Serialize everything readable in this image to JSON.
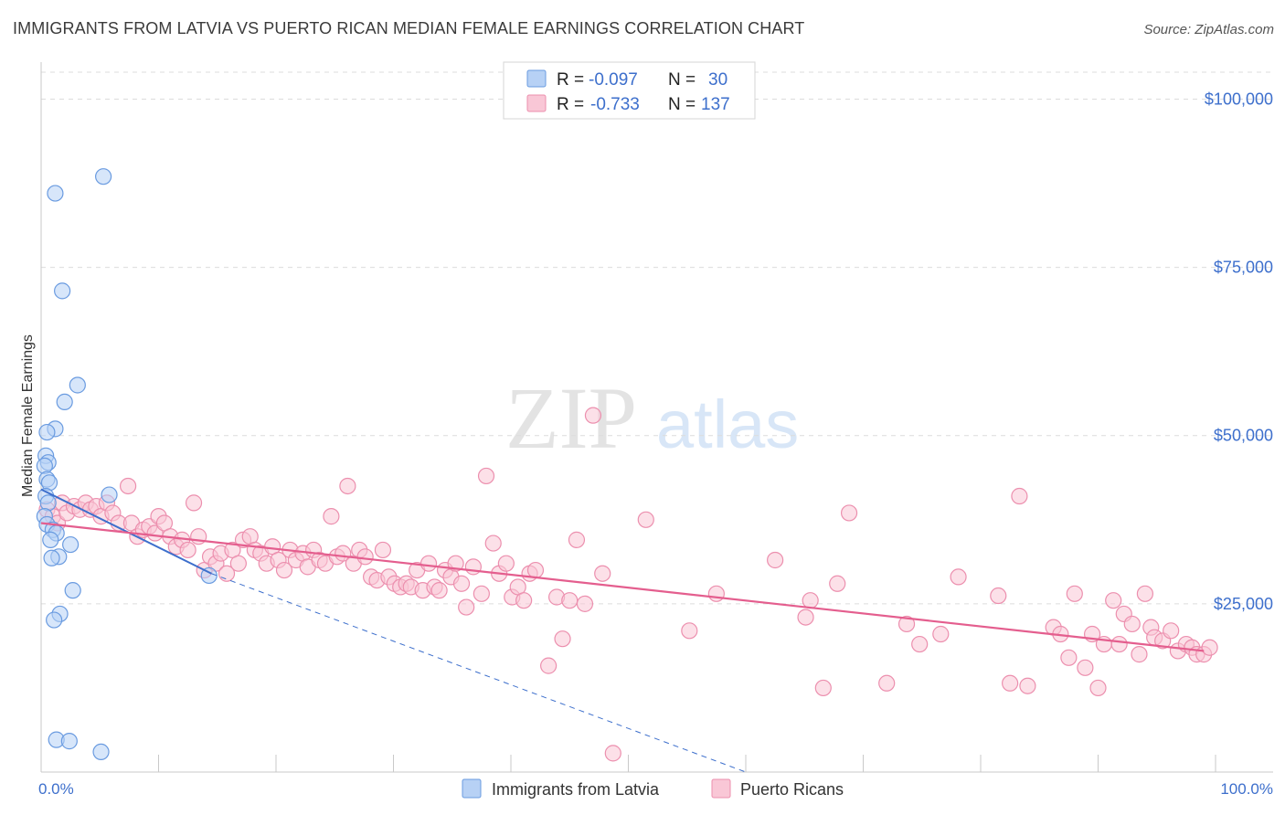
{
  "header": {
    "title": "IMMIGRANTS FROM LATVIA VS PUERTO RICAN MEDIAN FEMALE EARNINGS CORRELATION CHART",
    "source": "Source: ZipAtlas.com"
  },
  "watermark": {
    "zip": "ZIP",
    "atlas": "atlas"
  },
  "colors": {
    "latvia_fill": "#b7d1f5",
    "latvia_stroke": "#6a9be0",
    "latvia_line": "#3d6fcc",
    "pr_fill": "#f9c7d6",
    "pr_stroke": "#ec8fae",
    "pr_line": "#e45e8e",
    "axis_label": "#3d6fcc",
    "grid": "#dcdcdc"
  },
  "chart_data": {
    "type": "scatter",
    "title": "IMMIGRANTS FROM LATVIA VS PUERTO RICAN MEDIAN FEMALE EARNINGS CORRELATION CHART",
    "xlabel": "",
    "ylabel": "Median Female Earnings",
    "xlim": [
      0,
      100
    ],
    "ylim": [
      0,
      104000
    ],
    "x_tick_labels": {
      "left": "0.0%",
      "right": "100.0%"
    },
    "y_ticks": [
      {
        "value": 25000,
        "label": "$25,000"
      },
      {
        "value": 50000,
        "label": "$50,000"
      },
      {
        "value": 75000,
        "label": "$75,000"
      },
      {
        "value": 100000,
        "label": "$100,000"
      }
    ],
    "legend": [
      {
        "r_label": "R =",
        "r_value": "-0.097",
        "n_label": "N =",
        "n_value": "30"
      },
      {
        "r_label": "R =",
        "r_value": "-0.733",
        "n_label": "N =",
        "n_value": "137"
      }
    ],
    "series": [
      {
        "name": "Immigrants from Latvia",
        "trend": {
          "x": [
            0,
            14.5
          ],
          "y": [
            42000,
            29500
          ],
          "dashed_to": [
            60,
            0
          ]
        },
        "points": [
          [
            1.2,
            86000
          ],
          [
            5.3,
            88500
          ],
          [
            1.8,
            71500
          ],
          [
            3.1,
            57500
          ],
          [
            2.0,
            55000
          ],
          [
            1.2,
            51000
          ],
          [
            0.5,
            50500
          ],
          [
            0.4,
            47000
          ],
          [
            0.6,
            46000
          ],
          [
            0.3,
            45500
          ],
          [
            0.5,
            43500
          ],
          [
            0.7,
            43000
          ],
          [
            0.4,
            41000
          ],
          [
            0.6,
            40000
          ],
          [
            0.3,
            38000
          ],
          [
            0.5,
            36800
          ],
          [
            1.0,
            36000
          ],
          [
            1.3,
            35500
          ],
          [
            0.8,
            34500
          ],
          [
            2.5,
            33800
          ],
          [
            1.5,
            32000
          ],
          [
            0.9,
            31800
          ],
          [
            5.8,
            41200
          ],
          [
            2.7,
            27000
          ],
          [
            1.6,
            23500
          ],
          [
            1.1,
            22600
          ],
          [
            14.3,
            29200
          ],
          [
            1.3,
            4800
          ],
          [
            2.4,
            4600
          ],
          [
            5.1,
            3000
          ]
        ]
      },
      {
        "name": "Puerto Ricans",
        "trend": {
          "x": [
            0,
            99
          ],
          "y": [
            37000,
            18000
          ]
        },
        "points": [
          [
            0.5,
            39000
          ],
          [
            1.0,
            38000
          ],
          [
            1.4,
            37000
          ],
          [
            1.8,
            40000
          ],
          [
            2.2,
            38500
          ],
          [
            2.8,
            39500
          ],
          [
            3.3,
            39000
          ],
          [
            3.8,
            40000
          ],
          [
            4.2,
            39000
          ],
          [
            4.7,
            39500
          ],
          [
            5.1,
            38000
          ],
          [
            5.6,
            40000
          ],
          [
            6.1,
            38500
          ],
          [
            6.6,
            37000
          ],
          [
            7.4,
            42500
          ],
          [
            7.7,
            37000
          ],
          [
            8.2,
            35000
          ],
          [
            8.7,
            36000
          ],
          [
            9.2,
            36500
          ],
          [
            9.7,
            35500
          ],
          [
            10.0,
            38000
          ],
          [
            10.5,
            37000
          ],
          [
            11.0,
            35000
          ],
          [
            11.5,
            33500
          ],
          [
            12.0,
            34500
          ],
          [
            12.5,
            33000
          ],
          [
            13.0,
            40000
          ],
          [
            13.4,
            35000
          ],
          [
            13.9,
            30000
          ],
          [
            14.4,
            32000
          ],
          [
            14.9,
            31000
          ],
          [
            15.3,
            32500
          ],
          [
            15.8,
            29500
          ],
          [
            16.3,
            33000
          ],
          [
            16.8,
            31000
          ],
          [
            17.2,
            34500
          ],
          [
            17.8,
            35000
          ],
          [
            18.2,
            33000
          ],
          [
            18.7,
            32500
          ],
          [
            19.2,
            31000
          ],
          [
            19.7,
            33500
          ],
          [
            20.2,
            31500
          ],
          [
            20.7,
            30000
          ],
          [
            21.2,
            33000
          ],
          [
            21.7,
            31500
          ],
          [
            22.3,
            32500
          ],
          [
            22.7,
            30500
          ],
          [
            23.2,
            33000
          ],
          [
            23.7,
            31500
          ],
          [
            24.2,
            31000
          ],
          [
            24.7,
            38000
          ],
          [
            25.2,
            32000
          ],
          [
            25.7,
            32500
          ],
          [
            26.1,
            42500
          ],
          [
            26.6,
            31000
          ],
          [
            27.1,
            33000
          ],
          [
            27.6,
            32000
          ],
          [
            28.1,
            29000
          ],
          [
            28.6,
            28500
          ],
          [
            29.1,
            33000
          ],
          [
            29.6,
            29000
          ],
          [
            30.1,
            28000
          ],
          [
            30.6,
            27500
          ],
          [
            31.1,
            28000
          ],
          [
            31.5,
            27500
          ],
          [
            32.0,
            30000
          ],
          [
            32.5,
            27000
          ],
          [
            33.0,
            31000
          ],
          [
            33.5,
            27500
          ],
          [
            33.9,
            27000
          ],
          [
            34.4,
            30000
          ],
          [
            34.9,
            29000
          ],
          [
            35.3,
            31000
          ],
          [
            35.8,
            28000
          ],
          [
            36.2,
            24500
          ],
          [
            36.8,
            30500
          ],
          [
            37.5,
            26500
          ],
          [
            37.9,
            44000
          ],
          [
            38.5,
            34000
          ],
          [
            39.0,
            29500
          ],
          [
            39.6,
            31000
          ],
          [
            40.1,
            26000
          ],
          [
            40.6,
            27500
          ],
          [
            41.1,
            25500
          ],
          [
            41.6,
            29500
          ],
          [
            42.1,
            30000
          ],
          [
            43.2,
            15800
          ],
          [
            43.9,
            26000
          ],
          [
            44.4,
            19800
          ],
          [
            45.0,
            25500
          ],
          [
            45.6,
            34500
          ],
          [
            46.3,
            25000
          ],
          [
            47.0,
            53000
          ],
          [
            47.8,
            29500
          ],
          [
            48.7,
            2800
          ],
          [
            51.5,
            37500
          ],
          [
            55.2,
            21000
          ],
          [
            57.5,
            26500
          ],
          [
            62.5,
            31500
          ],
          [
            65.1,
            23000
          ],
          [
            65.5,
            25500
          ],
          [
            66.6,
            12500
          ],
          [
            67.8,
            28000
          ],
          [
            68.8,
            38500
          ],
          [
            72.0,
            13200
          ],
          [
            73.7,
            22000
          ],
          [
            74.8,
            19000
          ],
          [
            76.6,
            20500
          ],
          [
            78.1,
            29000
          ],
          [
            81.5,
            26200
          ],
          [
            82.5,
            13200
          ],
          [
            83.3,
            41000
          ],
          [
            84.0,
            12800
          ],
          [
            86.2,
            21500
          ],
          [
            86.8,
            20500
          ],
          [
            87.5,
            17000
          ],
          [
            88.0,
            26500
          ],
          [
            88.9,
            15500
          ],
          [
            89.5,
            20500
          ],
          [
            90.0,
            12500
          ],
          [
            90.5,
            19000
          ],
          [
            91.3,
            25500
          ],
          [
            91.8,
            19000
          ],
          [
            92.2,
            23500
          ],
          [
            92.9,
            22000
          ],
          [
            93.5,
            17500
          ],
          [
            94.0,
            26500
          ],
          [
            94.5,
            21500
          ],
          [
            94.8,
            20000
          ],
          [
            95.5,
            19500
          ],
          [
            96.2,
            21000
          ],
          [
            96.8,
            18000
          ],
          [
            97.5,
            19000
          ],
          [
            98.0,
            18500
          ],
          [
            98.4,
            17500
          ],
          [
            99.0,
            17500
          ],
          [
            99.5,
            18500
          ]
        ]
      }
    ],
    "legend_bottom": [
      "Immigrants from Latvia",
      "Puerto Ricans"
    ]
  }
}
